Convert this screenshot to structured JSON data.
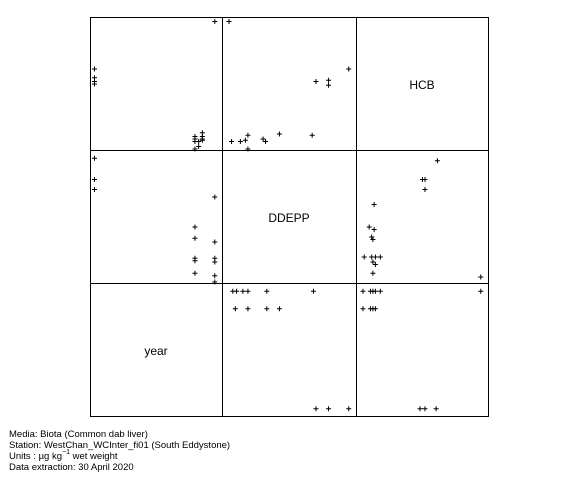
{
  "chart_data": {
    "type": "scatter-matrix",
    "variables": [
      "HCB",
      "DDEPP",
      "year"
    ],
    "marker": "+",
    "panels": [
      {
        "row": 0,
        "col": 0,
        "x_var": "year",
        "y_var": "HCB",
        "points": [
          [
            0,
            0.62
          ],
          [
            0,
            0.55
          ],
          [
            0,
            0.52
          ],
          [
            0,
            0.5
          ],
          [
            0.81,
            0.08
          ],
          [
            0.81,
            0.06
          ],
          [
            0.81,
            0.04
          ],
          [
            0.84,
            0.04
          ],
          [
            0.84,
            0.0
          ],
          [
            0.87,
            0.11
          ],
          [
            0.87,
            0.08
          ],
          [
            0.87,
            0.06
          ],
          [
            0.87,
            0.05
          ],
          [
            0.97,
            1.0
          ],
          [
            0.81,
            -0.02
          ]
        ]
      },
      {
        "row": 0,
        "col": 1,
        "x_var": "DDEPP",
        "y_var": "HCB",
        "points": [
          [
            0.02,
            1.0
          ],
          [
            0.04,
            0.04
          ],
          [
            0.11,
            0.04
          ],
          [
            0.15,
            0.05
          ],
          [
            0.17,
            0.09
          ],
          [
            0.17,
            -0.02
          ],
          [
            0.29,
            0.06
          ],
          [
            0.31,
            0.04
          ],
          [
            0.42,
            0.1
          ],
          [
            0.68,
            0.09
          ],
          [
            0.71,
            0.52
          ],
          [
            0.81,
            0.53
          ],
          [
            0.81,
            0.49
          ],
          [
            0.97,
            0.62
          ]
        ]
      },
      {
        "row": 1,
        "col": 0,
        "x_var": "year",
        "y_var": "DDEPP",
        "points": [
          [
            0,
            0.97
          ],
          [
            0,
            0.8
          ],
          [
            0,
            0.72
          ],
          [
            0,
            0.72
          ],
          [
            0.81,
            0.42
          ],
          [
            0.81,
            0.33
          ],
          [
            0.81,
            0.17
          ],
          [
            0.81,
            0.15
          ],
          [
            0.81,
            0.05
          ],
          [
            0.97,
            0.66
          ],
          [
            0.97,
            0.3
          ],
          [
            0.97,
            0.17
          ],
          [
            0.97,
            0.14
          ],
          [
            0.97,
            0.03
          ],
          [
            0.97,
            -0.02
          ]
        ]
      },
      {
        "row": 1,
        "col": 2,
        "x_var": "HCB",
        "y_var": "DDEPP",
        "points": [
          [
            0.03,
            0.18
          ],
          [
            0.07,
            0.42
          ],
          [
            0.09,
            0.34
          ],
          [
            0.1,
            0.32
          ],
          [
            0.1,
            0.14
          ],
          [
            0.11,
            0.6
          ],
          [
            0.11,
            0.4
          ],
          [
            0.12,
            0.18
          ],
          [
            0.12,
            0.12
          ],
          [
            0.16,
            0.18
          ],
          [
            0.1,
            0.05
          ],
          [
            0.09,
            0.18
          ],
          [
            0.5,
            0.8
          ],
          [
            0.52,
            0.8
          ],
          [
            0.52,
            0.72
          ],
          [
            0.62,
            0.95
          ],
          [
            0.97,
            0.02
          ]
        ]
      },
      {
        "row": 2,
        "col": 1,
        "x_var": "DDEPP",
        "y_var": "year",
        "points": [
          [
            0.05,
            0.97
          ],
          [
            0.08,
            0.97
          ],
          [
            0.13,
            0.97
          ],
          [
            0.17,
            0.97
          ],
          [
            0.07,
            0.83
          ],
          [
            0.17,
            0.83
          ],
          [
            0.32,
            0.97
          ],
          [
            0.32,
            0.83
          ],
          [
            0.42,
            0.83
          ],
          [
            0.69,
            0.97
          ],
          [
            0.71,
            0.03
          ],
          [
            0.81,
            0.03
          ],
          [
            0.97,
            0.03
          ]
        ]
      },
      {
        "row": 2,
        "col": 2,
        "x_var": "HCB",
        "y_var": "year",
        "points": [
          [
            0.02,
            0.97
          ],
          [
            0.08,
            0.97
          ],
          [
            0.1,
            0.97
          ],
          [
            0.12,
            0.97
          ],
          [
            0.16,
            0.97
          ],
          [
            0.02,
            0.83
          ],
          [
            0.08,
            0.83
          ],
          [
            0.1,
            0.83
          ],
          [
            0.12,
            0.83
          ],
          [
            0.97,
            0.97
          ],
          [
            0.48,
            0.03
          ],
          [
            0.52,
            0.03
          ],
          [
            0.61,
            0.03
          ]
        ]
      }
    ]
  },
  "labels": {
    "hcb": "HCB",
    "ddepp": "DDEPP",
    "year": "year"
  },
  "footer": {
    "media": "Media: Biota (Common dab liver)",
    "station": "Station: WestChan_WCInter_fi01 (South Eddystone)",
    "units_prefix": "Units : ",
    "units_mu": "µg kg",
    "units_exp": "−1",
    "units_suffix": " wet weight",
    "extraction": "Data extraction: 30 April 2020"
  }
}
